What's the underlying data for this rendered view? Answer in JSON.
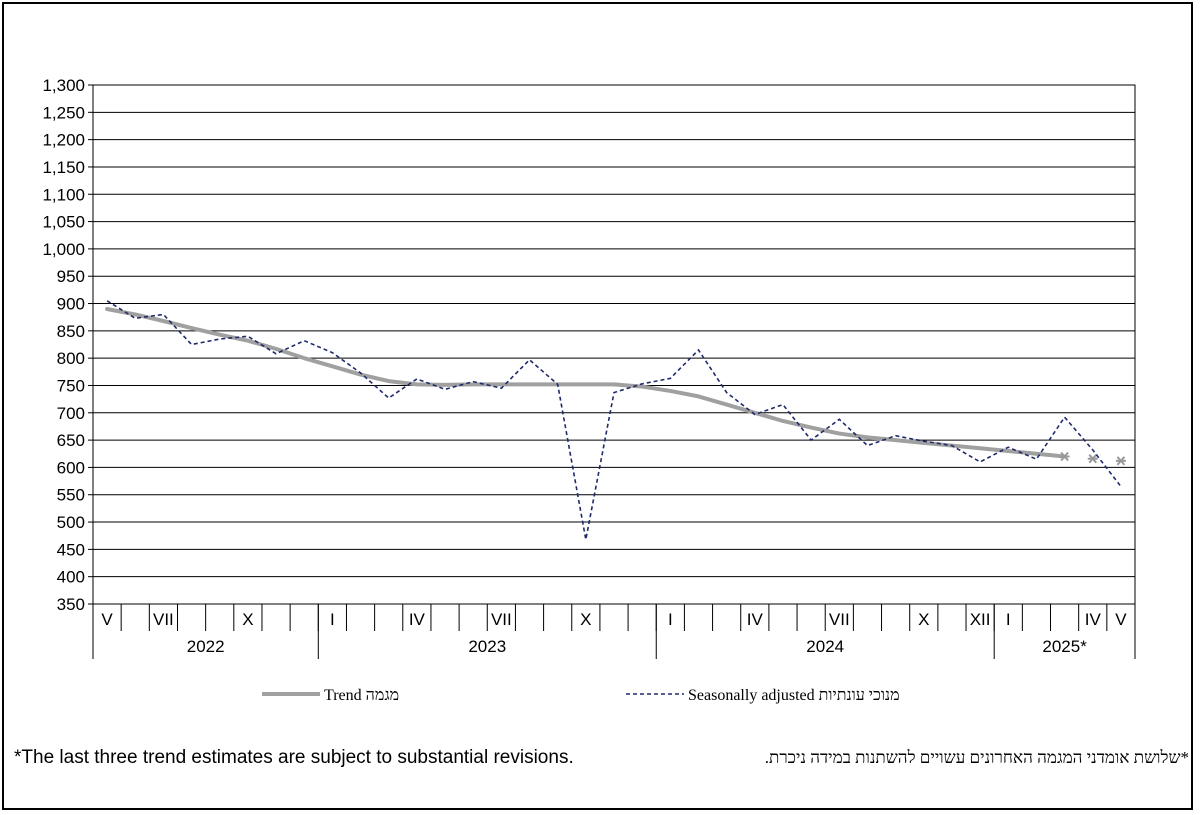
{
  "chart_data": {
    "type": "line",
    "ylim": [
      350,
      1300
    ],
    "y_ticks": [
      350,
      400,
      450,
      500,
      550,
      600,
      650,
      700,
      750,
      800,
      850,
      900,
      950,
      1000,
      1050,
      1100,
      1150,
      1200,
      1250,
      1300
    ],
    "y_tick_labels": [
      "350",
      "400",
      "450",
      "500",
      "550",
      "600",
      "650",
      "700",
      "750",
      "800",
      "850",
      "900",
      "950",
      "1,000",
      "1,050",
      "1,100",
      "1,150",
      "1,200",
      "1,250",
      "1,300"
    ],
    "x": [
      "2022-05",
      "2022-06",
      "2022-07",
      "2022-08",
      "2022-09",
      "2022-10",
      "2022-11",
      "2022-12",
      "2023-01",
      "2023-02",
      "2023-03",
      "2023-04",
      "2023-05",
      "2023-06",
      "2023-07",
      "2023-08",
      "2023-09",
      "2023-10",
      "2023-11",
      "2023-12",
      "2024-01",
      "2024-02",
      "2024-03",
      "2024-04",
      "2024-05",
      "2024-06",
      "2024-07",
      "2024-08",
      "2024-09",
      "2024-10",
      "2024-11",
      "2024-12",
      "2025-01",
      "2025-02",
      "2025-03",
      "2025-04",
      "2025-05"
    ],
    "month_labels": [
      "V",
      "",
      "VII",
      "",
      "",
      "X",
      "",
      "",
      "I",
      "",
      "",
      "IV",
      "",
      "",
      "VII",
      "",
      "",
      "X",
      "",
      "",
      "I",
      "",
      "",
      "IV",
      "",
      "",
      "VII",
      "",
      "",
      "X",
      "",
      "XII",
      "I",
      "",
      "",
      "IV",
      "V"
    ],
    "years": [
      {
        "label": "2022",
        "start": 0,
        "end": 7
      },
      {
        "label": "2023",
        "start": 8,
        "end": 19
      },
      {
        "label": "2024",
        "start": 20,
        "end": 31
      },
      {
        "label": "2025*",
        "start": 32,
        "end": 36
      }
    ],
    "series": [
      {
        "name": "Trend מגמה",
        "color": "#a0a0a0",
        "style": "solid",
        "values": [
          890,
          880,
          868,
          855,
          843,
          832,
          817,
          800,
          785,
          770,
          758,
          752,
          751,
          752,
          752,
          752,
          752,
          752,
          752,
          748,
          740,
          730,
          715,
          700,
          685,
          673,
          662,
          655,
          650,
          645,
          640,
          635,
          630,
          625,
          620,
          616,
          612
        ],
        "provisional_from": 34
      },
      {
        "name": "Seasonally adjusted מנוכי עונתיות",
        "color": "#1f2a6b",
        "style": "dashed",
        "values": [
          905,
          873,
          880,
          825,
          835,
          840,
          808,
          832,
          810,
          773,
          727,
          762,
          743,
          757,
          745,
          797,
          752,
          468,
          737,
          753,
          763,
          815,
          737,
          697,
          715,
          650,
          688,
          640,
          658,
          648,
          640,
          610,
          637,
          615,
          692,
          632,
          565
        ]
      }
    ],
    "legend": {
      "trend_en": "Trend",
      "trend_he": "מגמה",
      "sa_en": "Seasonally adjusted",
      "sa_he": "מנוכי עונתיות",
      "placement": "bottom"
    },
    "grid": true
  },
  "notes": {
    "en": "*The last three trend estimates are subject to substantial revisions.",
    "he": "*שלושת אומדני המגמה האחרונים עשויים להשתנות במידה ניכרת."
  }
}
